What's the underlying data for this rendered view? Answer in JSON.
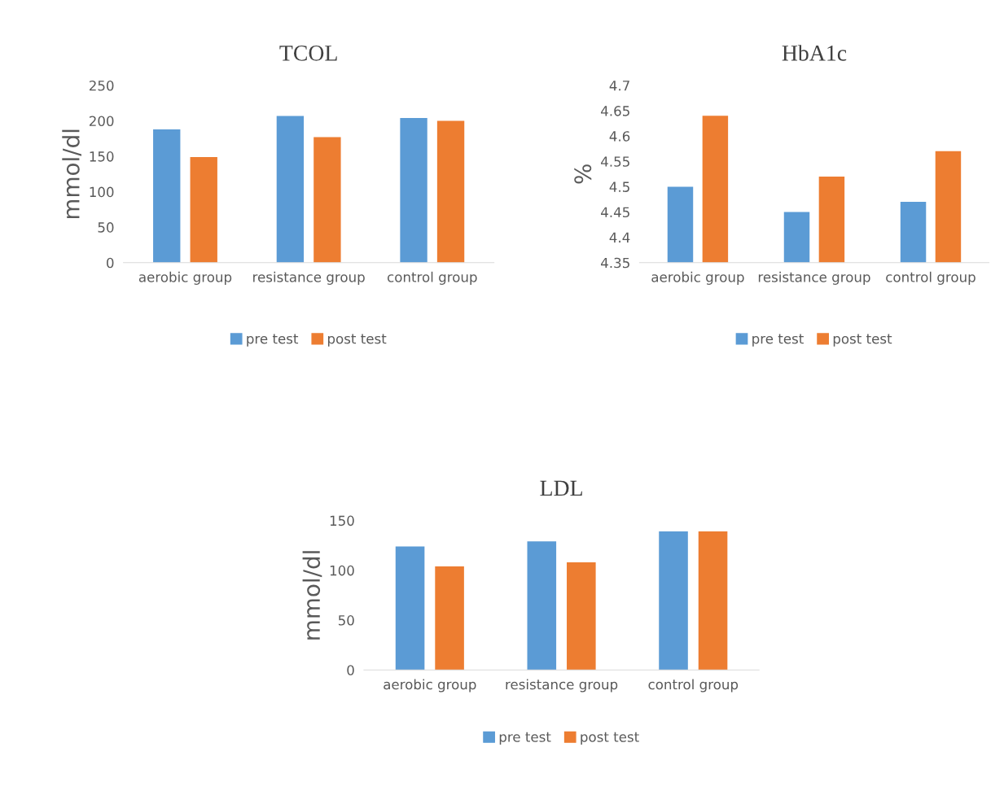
{
  "chart_data": [
    {
      "type": "bar",
      "title": "TCOL",
      "ylabel": "mmol/dl",
      "categories": [
        "aerobic group",
        "resistance group",
        "control group"
      ],
      "series": [
        {
          "name": "pre test",
          "color": "#5b9bd5",
          "values": [
            188,
            207,
            204
          ]
        },
        {
          "name": "post test",
          "color": "#ed7d31",
          "values": [
            149,
            177,
            200
          ]
        }
      ],
      "ylim": [
        0,
        250
      ],
      "yticks": [
        0,
        50,
        100,
        150,
        200,
        250
      ],
      "grid": false,
      "legend": "bottom"
    },
    {
      "type": "bar",
      "title": "HbA1c",
      "ylabel": "%",
      "categories": [
        "aerobic group",
        "resistance group",
        "control group"
      ],
      "series": [
        {
          "name": "pre test",
          "color": "#5b9bd5",
          "values": [
            4.5,
            4.45,
            4.47
          ]
        },
        {
          "name": "post test",
          "color": "#ed7d31",
          "values": [
            4.64,
            4.52,
            4.57
          ]
        }
      ],
      "ylim": [
        4.35,
        4.7
      ],
      "yticks": [
        4.35,
        4.4,
        4.45,
        4.5,
        4.55,
        4.6,
        4.65,
        4.7
      ],
      "grid": false,
      "legend": "bottom"
    },
    {
      "type": "bar",
      "title": "LDL",
      "ylabel": "mmol/dl",
      "categories": [
        "aerobic group",
        "resistance group",
        "control group"
      ],
      "series": [
        {
          "name": "pre test",
          "color": "#5b9bd5",
          "values": [
            124,
            129,
            139
          ]
        },
        {
          "name": "post test",
          "color": "#ed7d31",
          "values": [
            104,
            108,
            139
          ]
        }
      ],
      "ylim": [
        0,
        150
      ],
      "yticks": [
        0,
        50,
        100,
        150
      ],
      "grid": false,
      "legend": "bottom"
    }
  ]
}
